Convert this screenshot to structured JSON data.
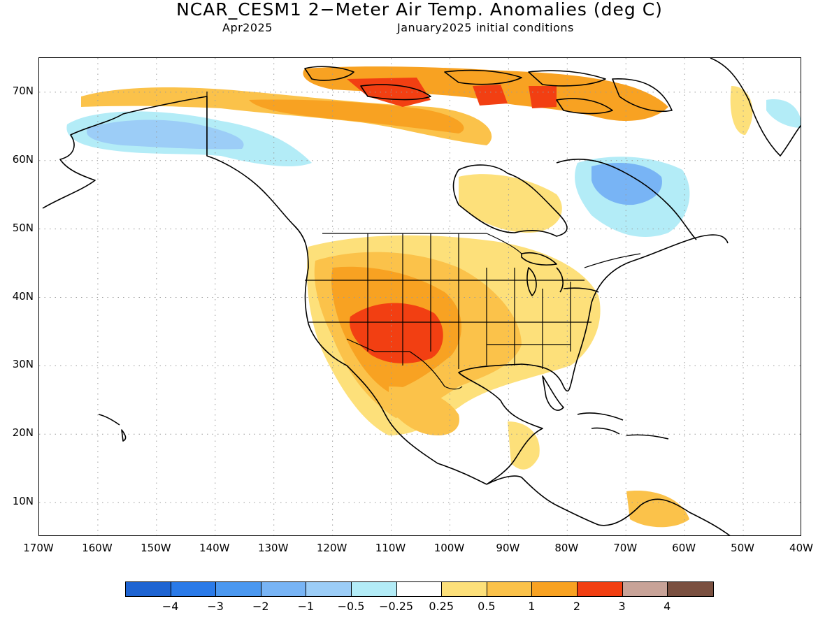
{
  "title": "NCAR_CESM1 2−Meter Air Temp. Anomalies (deg C)",
  "subtitle_left": "Apr2025",
  "subtitle_right": "January2025 initial conditions",
  "map": {
    "lon_range": [
      -170,
      -40
    ],
    "lat_range": [
      5,
      75
    ],
    "lat_ticks": [
      "70N",
      "60N",
      "50N",
      "40N",
      "30N",
      "20N",
      "10N"
    ],
    "lon_ticks": [
      "170W",
      "160W",
      "150W",
      "140W",
      "130W",
      "120W",
      "110W",
      "100W",
      "90W",
      "80W",
      "70W",
      "60W",
      "50W",
      "40W"
    ],
    "gridlines": "dotted"
  },
  "colorbar": {
    "colors": [
      "#1e64d2",
      "#2a7ae8",
      "#4b98f0",
      "#78b4f5",
      "#9ccdf7",
      "#b3ecf7",
      "#ffffff",
      "#fde07a",
      "#fbc24a",
      "#f8a222",
      "#f23f12",
      "#c8a398",
      "#7a5040"
    ],
    "labels": [
      "−4",
      "−3",
      "−2",
      "−1",
      "−0.5",
      "−0.25",
      "0.25",
      "0.5",
      "1",
      "2",
      "3",
      "4"
    ]
  }
}
